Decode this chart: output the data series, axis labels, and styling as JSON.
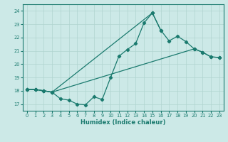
{
  "xlabel": "Humidex (Indice chaleur)",
  "xlim": [
    -0.5,
    23.5
  ],
  "ylim": [
    16.5,
    24.5
  ],
  "xticks": [
    0,
    1,
    2,
    3,
    4,
    5,
    6,
    7,
    8,
    9,
    10,
    11,
    12,
    13,
    14,
    15,
    16,
    17,
    18,
    19,
    20,
    21,
    22,
    23
  ],
  "yticks": [
    17,
    18,
    19,
    20,
    21,
    22,
    23,
    24
  ],
  "bg_color": "#cce9e7",
  "grid_color": "#b0d4d0",
  "line_color": "#1a7a6e",
  "line1_x": [
    0,
    1,
    2,
    3,
    4,
    5,
    6,
    7,
    8,
    9,
    10,
    11,
    12,
    13,
    14,
    15,
    16
  ],
  "line1_y": [
    18.1,
    18.1,
    18.0,
    17.9,
    17.4,
    17.3,
    17.0,
    16.95,
    17.55,
    17.35,
    19.0,
    20.6,
    21.1,
    21.55,
    23.1,
    23.85,
    22.55
  ],
  "line2_x": [
    0,
    1,
    2,
    3,
    15,
    16,
    17,
    18,
    19,
    20,
    21,
    22,
    23
  ],
  "line2_y": [
    18.1,
    18.1,
    18.0,
    17.9,
    23.85,
    22.55,
    21.75,
    22.1,
    21.7,
    21.15,
    20.9,
    20.55,
    20.5
  ],
  "line3_x": [
    0,
    1,
    2,
    3,
    20,
    21,
    22,
    23
  ],
  "line3_y": [
    18.1,
    18.1,
    18.0,
    17.9,
    21.15,
    20.9,
    20.55,
    20.5
  ]
}
